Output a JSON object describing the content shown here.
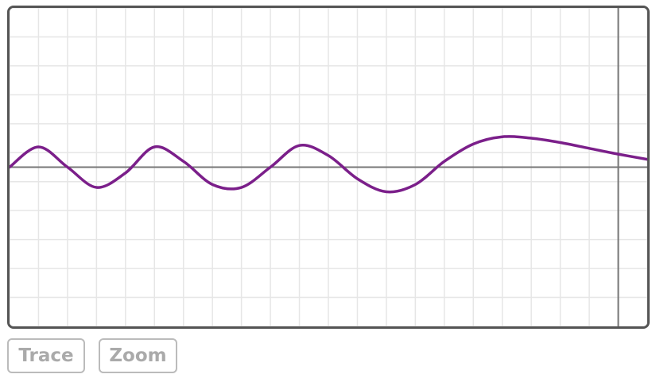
{
  "buttons": {
    "trace_label": "Trace",
    "zoom_label": "Zoom"
  },
  "chart_data": {
    "type": "line",
    "grid": true,
    "xlim": [
      -0.1,
      2.1
    ],
    "ylim": [
      -0.55,
      0.55
    ],
    "axes": {
      "x_axis_at_y": 0,
      "y_axis_at_x": 2.0
    },
    "series": [
      {
        "color": "#7b1f8a",
        "x": [
          -0.1,
          0.0,
          0.1,
          0.2,
          0.3,
          0.4,
          0.5,
          0.6,
          0.7,
          0.8,
          0.9,
          1.0,
          1.1,
          1.2,
          1.3,
          1.4,
          1.5,
          1.6,
          1.7,
          1.8,
          1.9,
          2.0,
          2.1
        ],
        "y": [
          0.0,
          0.07,
          0.0,
          -0.07,
          -0.02,
          0.07,
          0.02,
          -0.06,
          -0.07,
          0.0,
          0.075,
          0.04,
          -0.04,
          -0.085,
          -0.06,
          0.02,
          0.08,
          0.105,
          0.1,
          0.085,
          0.065,
          0.045,
          0.027
        ]
      }
    ],
    "colors": {
      "curve": "#7b1f8a",
      "axis": "#777777",
      "grid": "#e6e6e6",
      "frame": "#555555"
    }
  }
}
